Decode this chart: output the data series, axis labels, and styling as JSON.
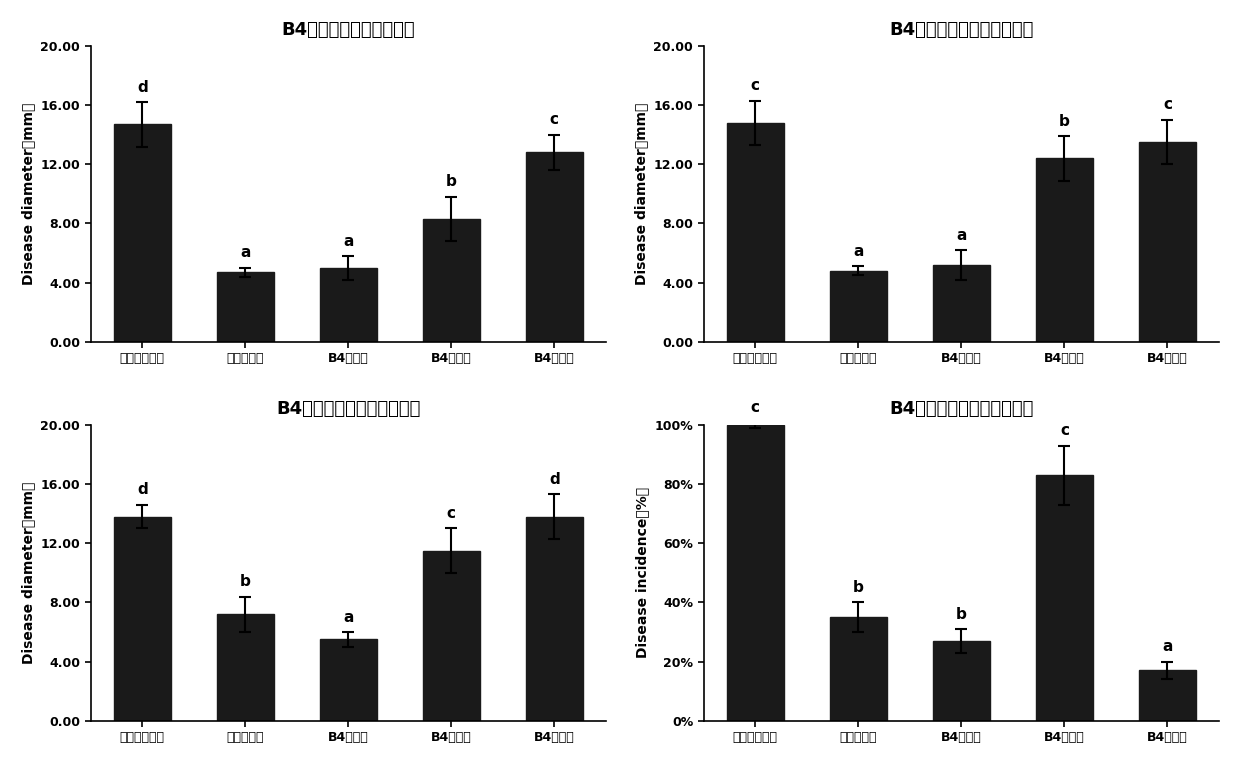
{
  "charts": [
    {
      "title": "B4在梨采后保鲜中的应用",
      "ylabel": "Disease diameter（mm）",
      "ylim": [
        0,
        20
      ],
      "yticks": [
        0.0,
        4.0,
        8.0,
        12.0,
        16.0,
        20.0
      ],
      "ytick_labels": [
        "0.00",
        "4.00",
        "8.00",
        "12.00",
        "16.00",
        "20.00"
      ],
      "values": [
        14.7,
        4.7,
        5.0,
        8.3,
        12.8
      ],
      "errors": [
        1.5,
        0.3,
        0.8,
        1.5,
        1.2
      ],
      "sig_labels": [
        "d",
        "a",
        "a",
        "b",
        "c"
      ],
      "percent": false
    },
    {
      "title": "B4在苹果采后保鲜中的应用",
      "ylabel": "Disease diameter（mm）",
      "ylim": [
        0,
        20
      ],
      "yticks": [
        0.0,
        4.0,
        8.0,
        12.0,
        16.0,
        20.0
      ],
      "ytick_labels": [
        "0.00",
        "4.00",
        "8.00",
        "12.00",
        "16.00",
        "20.00"
      ],
      "values": [
        14.8,
        4.8,
        5.2,
        12.4,
        13.5
      ],
      "errors": [
        1.5,
        0.3,
        1.0,
        1.5,
        1.5
      ],
      "sig_labels": [
        "c",
        "a",
        "a",
        "b",
        "c"
      ],
      "percent": false
    },
    {
      "title": "B4在枇杷采后保鲜中的应用",
      "ylabel": "Disease diameter（mm）",
      "ylim": [
        0,
        20
      ],
      "yticks": [
        0.0,
        4.0,
        8.0,
        12.0,
        16.0,
        20.0
      ],
      "ytick_labels": [
        "0.00",
        "4.00",
        "8.00",
        "12.00",
        "16.00",
        "20.00"
      ],
      "values": [
        13.8,
        7.2,
        5.5,
        11.5,
        13.8
      ],
      "errors": [
        0.8,
        1.2,
        0.5,
        1.5,
        1.5
      ],
      "sig_labels": [
        "d",
        "b",
        "a",
        "c",
        "d"
      ],
      "percent": false
    },
    {
      "title": "B4在番茄采后保鲜中的应用",
      "ylabel": "Disease incidence（%）",
      "ylim": [
        0,
        100
      ],
      "yticks": [
        0,
        20,
        40,
        60,
        80,
        100
      ],
      "ytick_labels": [
        "0%",
        "20%",
        "40%",
        "60%",
        "80%",
        "100%"
      ],
      "values": [
        100,
        35,
        27,
        83,
        17
      ],
      "errors": [
        1,
        5,
        4,
        10,
        3
      ],
      "sig_labels": [
        "c",
        "b",
        "b",
        "c",
        "a"
      ],
      "percent": true
    }
  ],
  "categories": [
    "无菌生理盐水",
    "酵母菌悬液",
    "B4发酵液",
    "B4菌悬液",
    "B4上清液"
  ],
  "bar_color": "#1a1a1a",
  "bar_width": 0.55,
  "bg_color": "#ffffff",
  "title_fontsize": 13,
  "label_fontsize": 10,
  "tick_fontsize": 9,
  "sig_fontsize": 11
}
